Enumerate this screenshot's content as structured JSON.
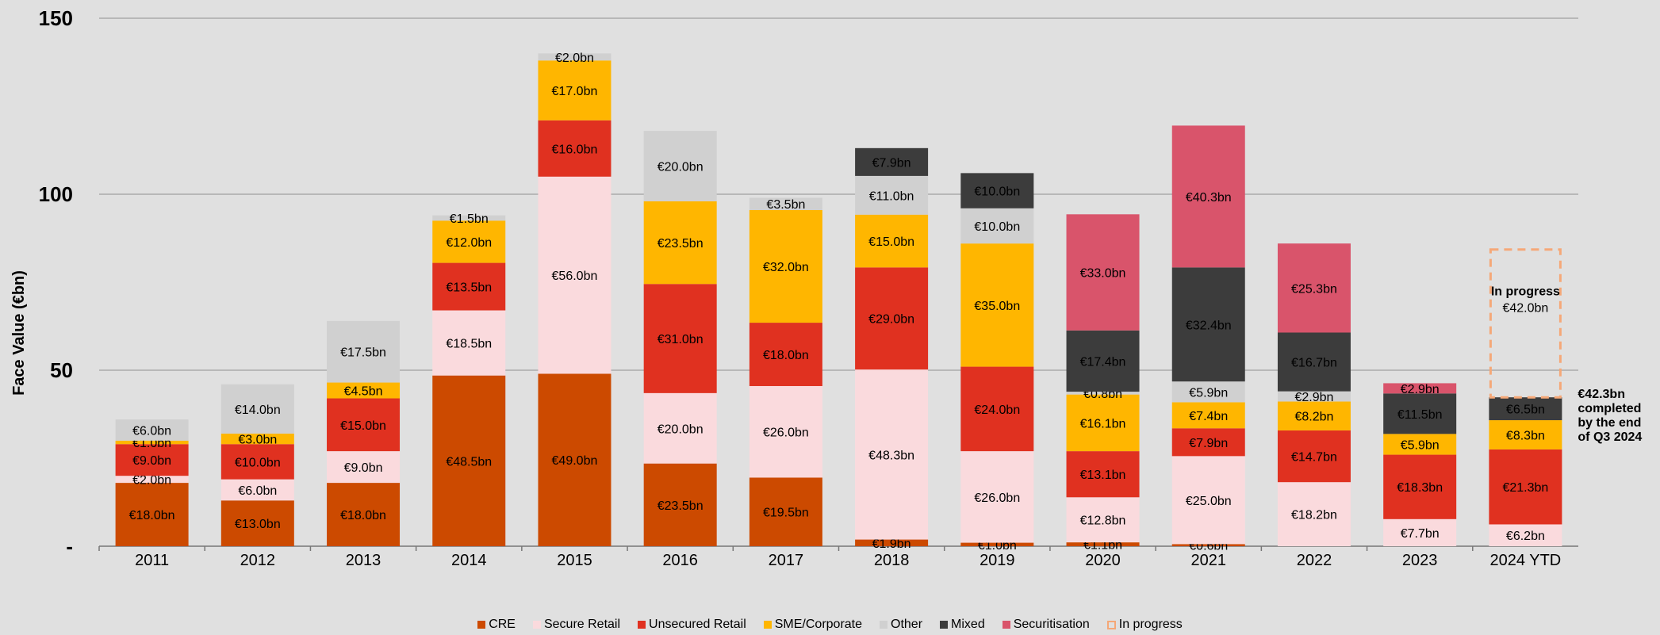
{
  "chart_data": {
    "type": "bar",
    "stacked": true,
    "ylabel": "Face Value (€bn)",
    "ylim": [
      0,
      150
    ],
    "yticks": [
      {
        "value": 0,
        "label": "-"
      },
      {
        "value": 50,
        "label": "50"
      },
      {
        "value": 100,
        "label": "100"
      },
      {
        "value": 150,
        "label": "150"
      }
    ],
    "grid": true,
    "legend_position": "bottom",
    "categories": [
      "2011",
      "2012",
      "2013",
      "2014",
      "2015",
      "2016",
      "2017",
      "2018",
      "2019",
      "2020",
      "2021",
      "2022",
      "2023",
      "2024 YTD"
    ],
    "series": [
      {
        "name": "CRE",
        "color": "#cc4a00",
        "values": [
          18.0,
          13.0,
          18.0,
          48.5,
          49.0,
          23.5,
          19.5,
          1.9,
          1.0,
          1.1,
          0.6,
          0,
          0,
          0
        ],
        "labels": [
          "€18.0bn",
          "€13.0bn",
          "€18.0bn",
          "€48.5bn",
          "€49.0bn",
          "€23.5bn",
          "€19.5bn",
          "€1.9bn",
          "€1.0bn",
          "€1.1bn",
          "€0.6bn",
          "",
          "",
          ""
        ]
      },
      {
        "name": "Secure Retail",
        "color": "#fadadd",
        "values": [
          2.0,
          6.0,
          9.0,
          18.5,
          56.0,
          20.0,
          26.0,
          48.3,
          26.0,
          12.8,
          25.0,
          18.2,
          7.7,
          6.2
        ],
        "labels": [
          "€2.0bn",
          "€6.0bn",
          "€9.0bn",
          "€18.5bn",
          "€56.0bn",
          "€20.0bn",
          "€26.0bn",
          "€48.3bn",
          "€26.0bn",
          "€12.8bn",
          "€25.0bn",
          "€18.2bn",
          "€7.7bn",
          "€6.2bn"
        ]
      },
      {
        "name": "Unsecured Retail",
        "color": "#e03120",
        "values": [
          9.0,
          10.0,
          15.0,
          13.5,
          16.0,
          31.0,
          18.0,
          29.0,
          24.0,
          13.1,
          7.9,
          14.7,
          18.3,
          21.3
        ],
        "labels": [
          "€9.0bn",
          "€10.0bn",
          "€15.0bn",
          "€13.5bn",
          "€16.0bn",
          "€31.0bn",
          "€18.0bn",
          "€29.0bn",
          "€24.0bn",
          "€13.1bn",
          "€7.9bn",
          "€14.7bn",
          "€18.3bn",
          "€21.3bn"
        ]
      },
      {
        "name": "SME/Corporate",
        "color": "#ffb600",
        "values": [
          1.0,
          3.0,
          4.5,
          12.0,
          17.0,
          23.5,
          32.0,
          15.0,
          35.0,
          16.1,
          7.4,
          8.2,
          5.9,
          8.3
        ],
        "labels": [
          "€1.0bn",
          "€3.0bn",
          "€4.5bn",
          "€12.0bn",
          "€17.0bn",
          "€23.5bn",
          "€32.0bn",
          "€15.0bn",
          "€35.0bn",
          "€16.1bn",
          "€7.4bn",
          "€8.2bn",
          "€5.9bn",
          "€8.3bn"
        ]
      },
      {
        "name": "Other",
        "color": "#d0d0d0",
        "values": [
          6.0,
          14.0,
          17.5,
          1.5,
          2.0,
          20.0,
          3.5,
          11.0,
          10.0,
          0.8,
          5.9,
          2.9,
          0,
          0
        ],
        "labels": [
          "€6.0bn",
          "€14.0bn",
          "€17.5bn",
          "€1.5bn",
          "€2.0bn",
          "€20.0bn",
          "€3.5bn",
          "€11.0bn",
          "€10.0bn",
          "€0.8bn",
          "€5.9bn",
          "€2.9bn",
          "",
          ""
        ]
      },
      {
        "name": "Mixed",
        "color": "#3c3c3c",
        "values": [
          0,
          0,
          0,
          0,
          0,
          0,
          0,
          7.9,
          10.0,
          17.4,
          32.4,
          16.7,
          11.5,
          6.5
        ],
        "labels": [
          "",
          "",
          "",
          "",
          "",
          "",
          "",
          "€7.9bn",
          "€10.0bn",
          "€17.4bn",
          "€32.4bn",
          "€16.7bn",
          "€11.5bn",
          "€6.5bn"
        ]
      },
      {
        "name": "Securitisation",
        "color": "#d9546b",
        "values": [
          0,
          0,
          0,
          0,
          0,
          0,
          0,
          0,
          0,
          33.0,
          40.3,
          25.3,
          2.9,
          0
        ],
        "labels": [
          "",
          "",
          "",
          "",
          "",
          "",
          "",
          "",
          "",
          "€33.0bn",
          "€40.3bn",
          "€25.3bn",
          "€2.9bn",
          ""
        ]
      },
      {
        "name": "In progress",
        "color": "#f5a878",
        "dashed": true,
        "values": [
          0,
          0,
          0,
          0,
          0,
          0,
          0,
          0,
          0,
          0,
          0,
          0,
          0,
          42.0
        ],
        "labels": [
          "",
          "",
          "",
          "",
          "",
          "",
          "",
          "",
          "",
          "",
          "",
          "",
          "",
          "€42.0bn"
        ],
        "title_label": "In progress"
      }
    ],
    "annotations": [
      {
        "text_lines": [
          "€42.3bn",
          "completed",
          "by the end",
          "of Q3 2024"
        ],
        "category": "2024 YTD"
      }
    ]
  }
}
